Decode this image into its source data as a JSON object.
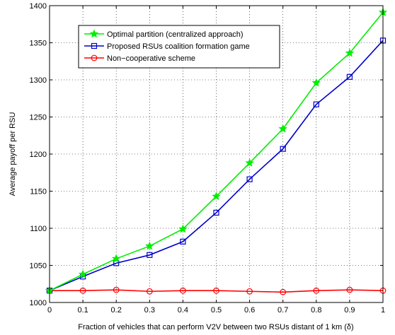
{
  "chart_data": {
    "type": "line",
    "title": "",
    "xlabel": "Fraction of vehicles that can perform V2V between two RSUs distant of 1 km (δ)",
    "ylabel": "Average payoff per RSU",
    "xlim": [
      0,
      1
    ],
    "ylim": [
      1000,
      1400
    ],
    "xticks": [
      "0",
      "0.1",
      "0.2",
      "0.3",
      "0.4",
      "0.5",
      "0.6",
      "0.7",
      "0.8",
      "0.9",
      "1"
    ],
    "yticks": [
      "1000",
      "1050",
      "1100",
      "1150",
      "1200",
      "1250",
      "1300",
      "1350",
      "1400"
    ],
    "grid": true,
    "legend_position": "top-left",
    "x": [
      0,
      0.1,
      0.2,
      0.3,
      0.4,
      0.5,
      0.6,
      0.7,
      0.8,
      0.9,
      1.0
    ],
    "series": [
      {
        "name": "Optimal partition (centralized approach)",
        "color": "#00ee00",
        "marker": "star",
        "values": [
          1016,
          1038,
          1059,
          1076,
          1099,
          1143,
          1188,
          1234,
          1296,
          1336,
          1391
        ]
      },
      {
        "name": "Proposed RSUs coalition formation game",
        "color": "#0000cc",
        "marker": "square",
        "values": [
          1016,
          1035,
          1053,
          1064,
          1082,
          1121,
          1166,
          1207,
          1267,
          1304,
          1353
        ]
      },
      {
        "name": "Non−cooperative scheme",
        "color": "#ff0000",
        "marker": "circle",
        "values": [
          1016,
          1016,
          1017,
          1015,
          1016,
          1016,
          1015,
          1014,
          1016,
          1017,
          1016
        ]
      }
    ]
  }
}
